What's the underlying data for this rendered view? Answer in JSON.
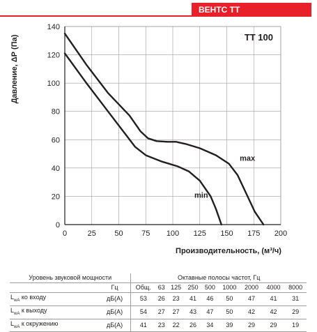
{
  "header": {
    "brand": "ВЕНТС ТТ"
  },
  "chart_data": {
    "type": "line",
    "title": "ТТ 100",
    "xlabel": "Производительность, (м³/ч)",
    "ylabel": "Давление, ΔР (Па)",
    "xlim": [
      0,
      200
    ],
    "ylim": [
      0,
      140
    ],
    "x_ticks": [
      0,
      25,
      50,
      75,
      100,
      125,
      150,
      175,
      200
    ],
    "y_ticks": [
      0,
      20,
      40,
      60,
      80,
      100,
      120,
      140
    ],
    "grid": true,
    "series": [
      {
        "name": "max",
        "label_at": [
          162,
          45
        ],
        "points": [
          [
            0,
            135
          ],
          [
            20,
            113
          ],
          [
            40,
            93
          ],
          [
            60,
            77
          ],
          [
            70,
            66
          ],
          [
            77,
            61
          ],
          [
            85,
            59
          ],
          [
            95,
            58.5
          ],
          [
            103,
            58.5
          ],
          [
            112,
            57
          ],
          [
            125,
            54
          ],
          [
            140,
            49
          ],
          [
            152,
            43
          ],
          [
            160,
            35
          ],
          [
            168,
            22
          ],
          [
            176,
            9
          ],
          [
            184,
            0
          ]
        ]
      },
      {
        "name": "min",
        "label_at": [
          120,
          19
        ],
        "points": [
          [
            0,
            121
          ],
          [
            20,
            100
          ],
          [
            40,
            80
          ],
          [
            55,
            65
          ],
          [
            65,
            55
          ],
          [
            75,
            49
          ],
          [
            90,
            44.5
          ],
          [
            105,
            41
          ],
          [
            115,
            37.5
          ],
          [
            125,
            31
          ],
          [
            135,
            20
          ],
          [
            140,
            11
          ],
          [
            145,
            0
          ]
        ]
      }
    ]
  },
  "noise_table": {
    "title": "Уровень звуковой мощности",
    "octave_title": "Октавные полосы частот, Гц",
    "unit_header": "Гц",
    "total_header": "Общ.",
    "frequencies": [
      "63",
      "125",
      "250",
      "500",
      "1000",
      "2000",
      "4000",
      "8000"
    ],
    "rows": [
      {
        "prefix": "L",
        "sub": "wA",
        "label": " ко входу",
        "unit": "дБ(А)",
        "total": "53",
        "values": [
          "26",
          "23",
          "41",
          "46",
          "50",
          "47",
          "41",
          "31"
        ]
      },
      {
        "prefix": "L",
        "sub": "wA",
        "label": " к выходу",
        "unit": "дБ(А)",
        "total": "54",
        "values": [
          "27",
          "27",
          "43",
          "47",
          "50",
          "42",
          "42",
          "29"
        ]
      },
      {
        "prefix": "L",
        "sub": "wA",
        "label": " к окружению",
        "unit": "дБ(А)",
        "total": "41",
        "values": [
          "23",
          "22",
          "26",
          "34",
          "39",
          "29",
          "29",
          "19"
        ]
      }
    ]
  },
  "colors": {
    "brand_red": "#e8202a",
    "curve": "#231f20",
    "grid": "#9d9d9c"
  }
}
